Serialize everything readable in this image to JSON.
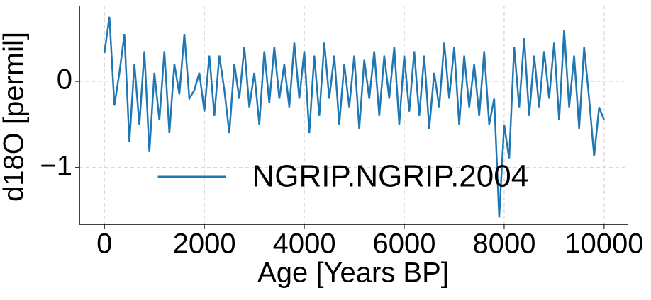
{
  "chart_data": {
    "type": "line",
    "xlabel": "Age [Years BP]",
    "ylabel": "d18O [permil]",
    "x": [
      0,
      100,
      200,
      300,
      400,
      500,
      600,
      700,
      800,
      900,
      1000,
      1100,
      1200,
      1300,
      1400,
      1500,
      1600,
      1700,
      1800,
      1900,
      2000,
      2100,
      2200,
      2300,
      2400,
      2500,
      2600,
      2700,
      2800,
      2900,
      3000,
      3100,
      3200,
      3300,
      3400,
      3500,
      3600,
      3700,
      3800,
      3900,
      4000,
      4100,
      4200,
      4300,
      4400,
      4500,
      4600,
      4700,
      4800,
      4900,
      5000,
      5100,
      5200,
      5300,
      5400,
      5500,
      5600,
      5700,
      5800,
      5900,
      6000,
      6100,
      6200,
      6300,
      6400,
      6500,
      6600,
      6700,
      6800,
      6900,
      7000,
      7100,
      7200,
      7300,
      7400,
      7500,
      7600,
      7700,
      7800,
      7900,
      8000,
      8100,
      8200,
      8300,
      8400,
      8500,
      8600,
      8700,
      8800,
      8900,
      9000,
      9100,
      9200,
      9300,
      9400,
      9500,
      9600,
      9700,
      9800,
      9900,
      10000
    ],
    "series": [
      {
        "name": "NGRIP.NGRIP.2004",
        "color": "#1f77b4",
        "values": [
          0.33,
          0.75,
          -0.28,
          0.1,
          0.55,
          -0.7,
          0.2,
          -0.5,
          0.35,
          -0.82,
          0.1,
          -0.45,
          0.35,
          -0.6,
          0.2,
          -0.15,
          0.55,
          -0.2,
          -0.1,
          0.1,
          -0.35,
          0.3,
          -0.4,
          0.3,
          -0.1,
          -0.6,
          0.2,
          -0.2,
          0.4,
          -0.3,
          0.1,
          -0.5,
          0.35,
          -0.25,
          0.4,
          -0.2,
          0.2,
          -0.3,
          0.45,
          -0.2,
          0.35,
          -0.6,
          0.3,
          -0.4,
          0.45,
          -0.2,
          0.3,
          -0.5,
          0.2,
          -0.3,
          0.3,
          -0.55,
          0.25,
          -0.2,
          0.35,
          -0.4,
          0.3,
          -0.2,
          0.4,
          -0.5,
          0.3,
          -0.35,
          0.35,
          -0.4,
          0.3,
          -0.55,
          0.1,
          -0.3,
          0.45,
          -0.2,
          0.4,
          -0.5,
          0.3,
          -0.3,
          0.2,
          -0.4,
          0.35,
          -0.5,
          -0.2,
          -1.58,
          -0.5,
          -0.9,
          0.4,
          -0.3,
          0.5,
          -0.4,
          0.3,
          -0.3,
          0.35,
          -0.2,
          0.45,
          -0.45,
          0.6,
          -0.3,
          0.3,
          -0.55,
          0.4,
          -0.2,
          -0.87,
          -0.3,
          -0.45
        ]
      }
    ],
    "xlim": [
      -500,
      10470
    ],
    "xticks": [
      0,
      2000,
      4000,
      6000,
      8000,
      10000
    ],
    "ylim": [
      -1.66,
      0.88
    ],
    "yticks": [
      {
        "value": -1,
        "label": "−1"
      },
      0
    ],
    "grid": true,
    "legend_loc": "lower center"
  }
}
